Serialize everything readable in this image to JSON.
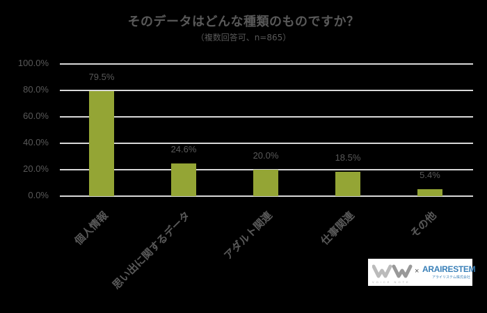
{
  "chart_data": {
    "type": "bar",
    "title": "そのデータはどんな種類のものですか？",
    "subtitle": "（複数回答可、n=865）",
    "categories": [
      "個人情報",
      "思い出に関するデータ",
      "アダルト関連",
      "仕事関連",
      "その他"
    ],
    "values": [
      79.5,
      24.6,
      20.0,
      18.5,
      5.4
    ],
    "value_labels": [
      "79.5%",
      "24.6%",
      "20.0%",
      "18.5%",
      "5.4%"
    ],
    "xlabel": "",
    "ylabel": "",
    "ylim": [
      0,
      100
    ],
    "yticks": [
      "100.0%",
      "80.0%",
      "60.0%",
      "40.0%",
      "20.0%",
      "0.0%"
    ],
    "ytick_values": [
      100,
      80,
      60,
      40,
      20,
      0
    ],
    "grid": true,
    "legend": "none",
    "bar_color": "#94A535",
    "background": "#000000",
    "text_color": "#595959",
    "gridline_color": "#D9D9D9"
  },
  "logo": {
    "left_brand": "VOICE NOTE",
    "separator": "×",
    "right_brand": "ARAIRESTEM",
    "right_sub": "アライリステム株式会社"
  }
}
